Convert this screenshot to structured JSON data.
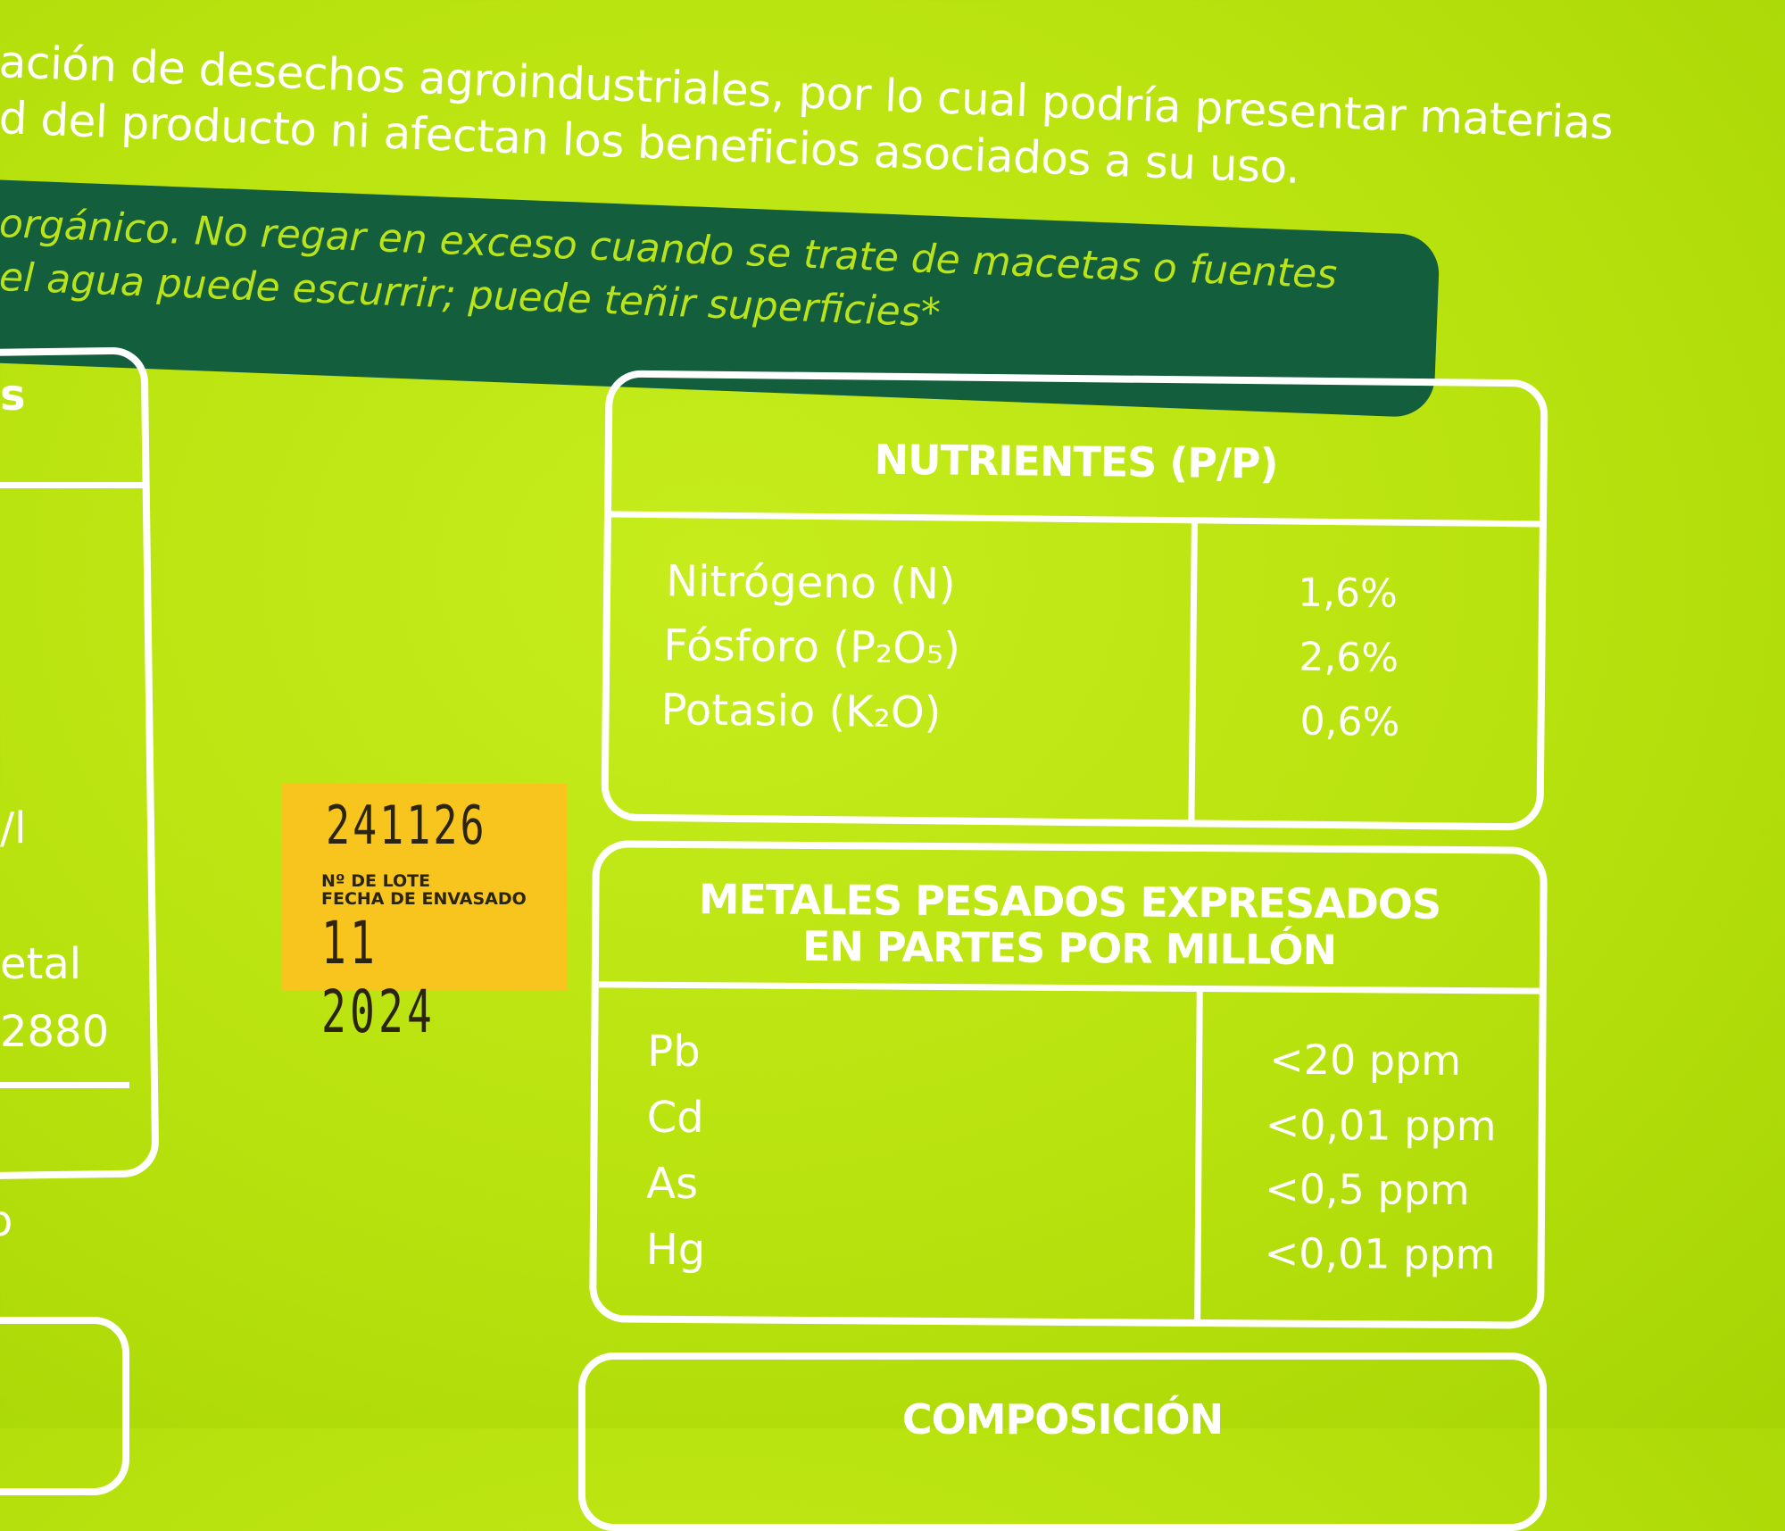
{
  "intro_lines": [
    "ación de desechos agroindustriales, por lo cual podría presentar materias",
    "d del producto ni afectan los beneficios asociados a su uso."
  ],
  "warning_lines": [
    "orgánico. No regar en exceso cuando se trate de macetas o fuentes",
    "el agua puede escurrir; puede teñir superficies*"
  ],
  "left_panel": {
    "header_fragment": "s",
    "unit_fragment": "/l",
    "line_a": "etal",
    "line_b": "2880",
    "below_fragment": "o"
  },
  "sticker": {
    "lot_number": "241126",
    "lot_label": "Nº DE LOTE",
    "date_label": "FECHA DE ENVASADO",
    "date": "11 2024"
  },
  "nutrients": {
    "title": "NUTRIENTES (P/P)",
    "rows": [
      {
        "name": "Nitrógeno (N)",
        "value": "1,6%"
      },
      {
        "name": "Fósforo (P₂O₅)",
        "value": "2,6%"
      },
      {
        "name": "Potasio (K₂O)",
        "value": "0,6%"
      }
    ]
  },
  "heavy_metals": {
    "title_line1": "METALES PESADOS EXPRESADOS",
    "title_line2": "EN PARTES POR MILLÓN",
    "rows": [
      {
        "name": "Pb",
        "value": "<20 ppm"
      },
      {
        "name": "Cd",
        "value": "<0,01 ppm"
      },
      {
        "name": "As",
        "value": "<0,5 ppm"
      },
      {
        "name": "Hg",
        "value": "<0,01 ppm"
      }
    ]
  },
  "composition": {
    "title": "COMPOSICIÓN"
  },
  "colors": {
    "background": "#bde614",
    "band": "#135e3c",
    "band_text": "#b9e31a",
    "sticker": "#f7c51e"
  }
}
